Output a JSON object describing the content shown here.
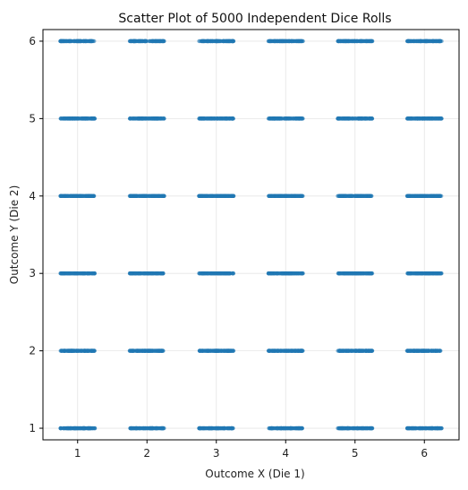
{
  "chart_data": {
    "type": "scatter",
    "title": "Scatter Plot of 5000 Independent Dice Rolls",
    "xlabel": "Outcome X (Die 1)",
    "ylabel": "Outcome Y (Die 2)",
    "x_ticks": [
      1,
      2,
      3,
      4,
      5,
      6
    ],
    "y_ticks": [
      1,
      2,
      3,
      4,
      5,
      6
    ],
    "xlim": [
      0.5,
      6.5
    ],
    "ylim": [
      0.85,
      6.15
    ],
    "grid": true,
    "jitter_x": 0.25,
    "point_color": "#1f77b4",
    "outcomes_x": [
      1,
      2,
      3,
      4,
      5,
      6
    ],
    "outcomes_y": [
      1,
      2,
      3,
      4,
      5,
      6
    ],
    "total_points": 5000
  }
}
